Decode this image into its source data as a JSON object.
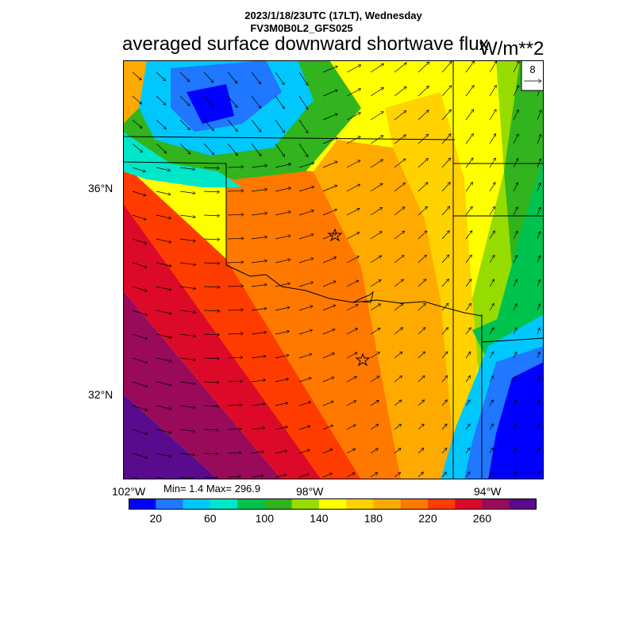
{
  "header": {
    "datetime": "2023/1/18/23UTC (17LT), Wednesday",
    "model": "FV3M0B0L2_GFS025"
  },
  "title": "averaged surface downward shortwave flux",
  "units": "W/m**2",
  "vector_reference": {
    "value": "8"
  },
  "axes": {
    "lat_labels": [
      "36°N",
      "32°N"
    ],
    "lon_labels": [
      "102°W",
      "98°W",
      "94°W"
    ]
  },
  "stats": "Min= 1.4 Max= 296.9",
  "colorbar": {
    "labels": [
      "20",
      "60",
      "100",
      "140",
      "180",
      "220",
      "260"
    ],
    "colors": [
      "#0000ff",
      "#1f78ff",
      "#00c8ff",
      "#00e6c8",
      "#00c34e",
      "#31b41e",
      "#96dc00",
      "#ffff00",
      "#ffd200",
      "#ffaa00",
      "#ff7800",
      "#ff3c00",
      "#dc0a28",
      "#9a0a5a",
      "#5a0a8c"
    ]
  },
  "map_features": {
    "stations": [
      "star-marker-north",
      "star-marker-south"
    ]
  }
}
